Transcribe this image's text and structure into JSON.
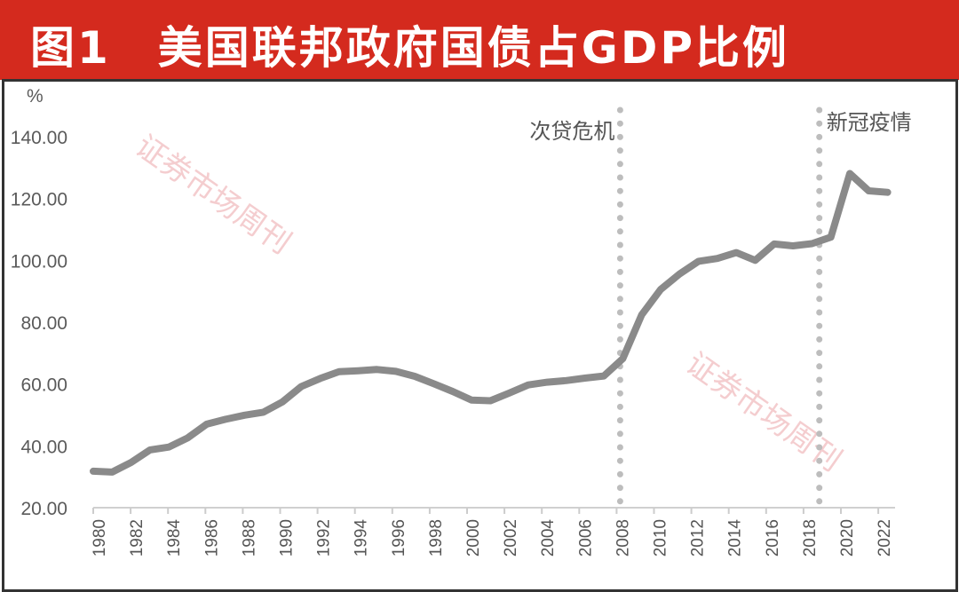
{
  "title": "图1　美国联邦政府国债占GDP比例",
  "watermark": "证券市场周刊",
  "chart_data": {
    "type": "line",
    "title": "图1　美国联邦政府国债占GDP比例",
    "ylabel": "%",
    "xlabel": "",
    "ylim": [
      20,
      140
    ],
    "yticks": [
      "20.00",
      "40.00",
      "60.00",
      "80.00",
      "100.00",
      "120.00",
      "140.00"
    ],
    "ytick_values": [
      20,
      40,
      60,
      80,
      100,
      120,
      140
    ],
    "xticks": [
      "1980",
      "1982",
      "1984",
      "1986",
      "1988",
      "1990",
      "1992",
      "1994",
      "1996",
      "1998",
      "2000",
      "2002",
      "2004",
      "2006",
      "2008",
      "2010",
      "2012",
      "2014",
      "2016",
      "2018",
      "2020",
      "2022"
    ],
    "grid": false,
    "series": [
      {
        "name": "联邦政府国债占GDP比例",
        "color": "#8a8a8a",
        "x": [
          1980,
          1981,
          1982,
          1983,
          1984,
          1985,
          1986,
          1987,
          1988,
          1989,
          1990,
          1991,
          1992,
          1993,
          1994,
          1995,
          1996,
          1997,
          1998,
          1999,
          2000,
          2001,
          2002,
          2003,
          2004,
          2005,
          2006,
          2007,
          2008,
          2009,
          2010,
          2011,
          2012,
          2013,
          2014,
          2015,
          2016,
          2017,
          2018,
          2019,
          2020,
          2021,
          2022
        ],
        "values": [
          31.8,
          31.5,
          34.6,
          38.7,
          39.6,
          42.6,
          47.0,
          48.6,
          49.9,
          50.9,
          54.2,
          59.2,
          61.8,
          64.0,
          64.3,
          64.7,
          64.1,
          62.5,
          60.1,
          57.6,
          54.8,
          54.6,
          57.1,
          59.7,
          60.6,
          61.1,
          61.9,
          62.6,
          68.2,
          82.4,
          90.6,
          95.6,
          99.7,
          100.6,
          102.5,
          100.0,
          105.3,
          104.7,
          105.4,
          107.5,
          128.1,
          122.5,
          122.0
        ]
      }
    ],
    "annotations": [
      {
        "label": "次贷危机",
        "x": 2008,
        "style": "dotted-vertical"
      },
      {
        "label": "新冠疫情",
        "x": 2019,
        "style": "dotted-vertical"
      }
    ]
  }
}
